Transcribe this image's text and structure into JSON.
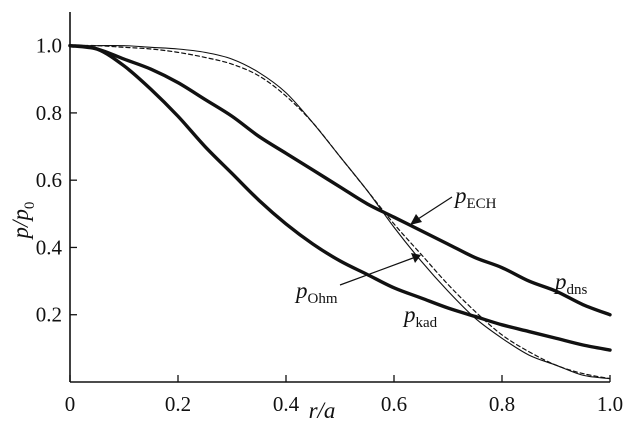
{
  "chart_data": {
    "type": "line",
    "xlabel": "r/a",
    "ylabel": "p/p0",
    "ylabel_main": "p/p",
    "ylabel_sub": "0",
    "xlim": [
      0,
      1.0
    ],
    "ylim": [
      0,
      1.1
    ],
    "x_ticks": [
      0,
      0.2,
      0.4,
      0.6,
      0.8,
      1.0
    ],
    "x_tick_labels": [
      "0",
      "0.2",
      "0.4",
      "0.6",
      "0.8",
      "1.0"
    ],
    "y_ticks": [
      0.2,
      0.4,
      0.6,
      0.8,
      1.0
    ],
    "y_tick_labels": [
      "0.2",
      "0.4",
      "0.6",
      "0.8",
      "1.0"
    ],
    "grid": false,
    "legend": "none",
    "x": [
      0,
      0.05,
      0.1,
      0.15,
      0.2,
      0.25,
      0.3,
      0.35,
      0.4,
      0.45,
      0.5,
      0.55,
      0.6,
      0.65,
      0.7,
      0.75,
      0.8,
      0.85,
      0.9,
      0.95,
      1.0
    ],
    "series": [
      {
        "name": "p_dns",
        "label_main": "p",
        "label_sub": "dns",
        "style": "thick",
        "values": [
          1.0,
          0.99,
          0.96,
          0.93,
          0.89,
          0.84,
          0.79,
          0.73,
          0.68,
          0.63,
          0.58,
          0.53,
          0.49,
          0.45,
          0.41,
          0.37,
          0.34,
          0.3,
          0.27,
          0.23,
          0.2
        ]
      },
      {
        "name": "p_kad",
        "label_main": "p",
        "label_sub": "kad",
        "style": "thick",
        "values": [
          1.0,
          0.99,
          0.94,
          0.87,
          0.79,
          0.7,
          0.62,
          0.54,
          0.47,
          0.41,
          0.36,
          0.32,
          0.28,
          0.25,
          0.22,
          0.195,
          0.17,
          0.15,
          0.13,
          0.11,
          0.095
        ]
      },
      {
        "name": "p_Ohm",
        "label_main": "p",
        "label_sub": "Ohm",
        "style": "thin",
        "values": [
          1.0,
          1.0,
          1.0,
          0.995,
          0.99,
          0.98,
          0.96,
          0.92,
          0.86,
          0.77,
          0.67,
          0.57,
          0.46,
          0.36,
          0.27,
          0.19,
          0.13,
          0.08,
          0.05,
          0.02,
          0.01
        ]
      },
      {
        "name": "p_ECH",
        "label_main": "p",
        "label_sub": "ECH",
        "style": "dashed",
        "values": [
          1.0,
          1.0,
          0.995,
          0.99,
          0.98,
          0.965,
          0.945,
          0.91,
          0.85,
          0.77,
          0.67,
          0.57,
          0.47,
          0.38,
          0.29,
          0.21,
          0.14,
          0.09,
          0.05,
          0.025,
          0.01
        ]
      }
    ]
  }
}
